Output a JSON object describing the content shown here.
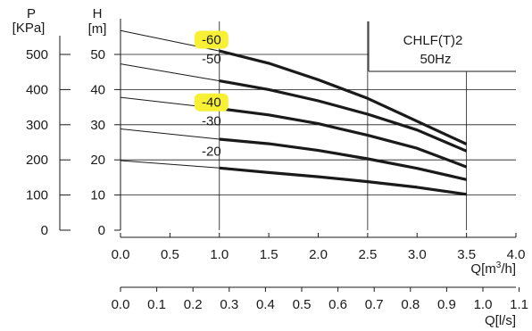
{
  "chart_data": {
    "type": "line",
    "model": "CHLF(T)2",
    "frequency": "50Hz",
    "x_axis_flow_m3h": {
      "label_prefix": "Q[m",
      "label_sup": "3",
      "label_suffix": "/h]",
      "min": 0.0,
      "max": 4.0,
      "ticks": [
        0.0,
        0.5,
        1.0,
        1.5,
        2.0,
        2.5,
        3.0,
        3.5,
        4.0
      ],
      "tick_labels": [
        "0.0",
        "0.5",
        "1.0",
        "1.5",
        "2.0",
        "2.5",
        "3.0",
        "3.5",
        "4.0"
      ]
    },
    "x_axis_flow_ls": {
      "label": "Q[l/s]",
      "tick_labels": [
        "0.0",
        "0.1",
        "0.2",
        "0.3",
        "0.4",
        "0.5",
        "0.6",
        "0.7",
        "0.8",
        "0.9",
        "1.0",
        "1.1"
      ]
    },
    "y_axis_head_m": {
      "label_top": "H",
      "label_unit": "[m]",
      "min": 0,
      "max": 60,
      "ticks": [
        0,
        10,
        20,
        30,
        40,
        50
      ],
      "tick_labels": [
        "0",
        "10",
        "20",
        "30",
        "40",
        "50"
      ]
    },
    "y_axis_pressure_kpa": {
      "label_top": "P",
      "label_unit": "[KPa]",
      "ticks": [
        0,
        100,
        200,
        300,
        400,
        500
      ],
      "tick_labels": [
        "0",
        "100",
        "200",
        "300",
        "400",
        "500"
      ]
    },
    "grid": true,
    "series": [
      {
        "name": "-60",
        "highlighted": true,
        "x": [
          0.0,
          1.0,
          1.5,
          2.0,
          2.5,
          3.0,
          3.5
        ],
        "y": [
          56.8,
          51.0,
          47.5,
          42.8,
          37.5,
          31.0,
          24.5
        ]
      },
      {
        "name": "-50",
        "highlighted": false,
        "x": [
          0.0,
          1.0,
          1.5,
          2.0,
          2.5,
          3.0,
          3.5
        ],
        "y": [
          47.3,
          42.5,
          40.0,
          36.8,
          33.0,
          28.5,
          22.5
        ]
      },
      {
        "name": "-40",
        "highlighted": true,
        "x": [
          0.0,
          1.0,
          1.5,
          2.0,
          2.5,
          3.0,
          3.5
        ],
        "y": [
          37.8,
          34.6,
          32.8,
          30.3,
          27.0,
          23.3,
          18.0
        ]
      },
      {
        "name": "-30",
        "highlighted": false,
        "x": [
          0.0,
          1.0,
          1.5,
          2.0,
          2.5,
          3.0,
          3.5
        ],
        "y": [
          28.8,
          25.9,
          24.6,
          22.7,
          20.3,
          17.6,
          14.4
        ]
      },
      {
        "name": "-20",
        "highlighted": false,
        "x": [
          0.0,
          1.0,
          1.5,
          2.0,
          2.5,
          3.0,
          3.5
        ],
        "y": [
          19.8,
          17.7,
          16.4,
          15.2,
          13.8,
          12.2,
          10.2
        ]
      }
    ],
    "operating_range_m3h": [
      1.0,
      3.5
    ],
    "colors": {
      "curve": "#1a1a1a",
      "highlight": "#f7f035",
      "grid": "#1a1a1a"
    }
  }
}
